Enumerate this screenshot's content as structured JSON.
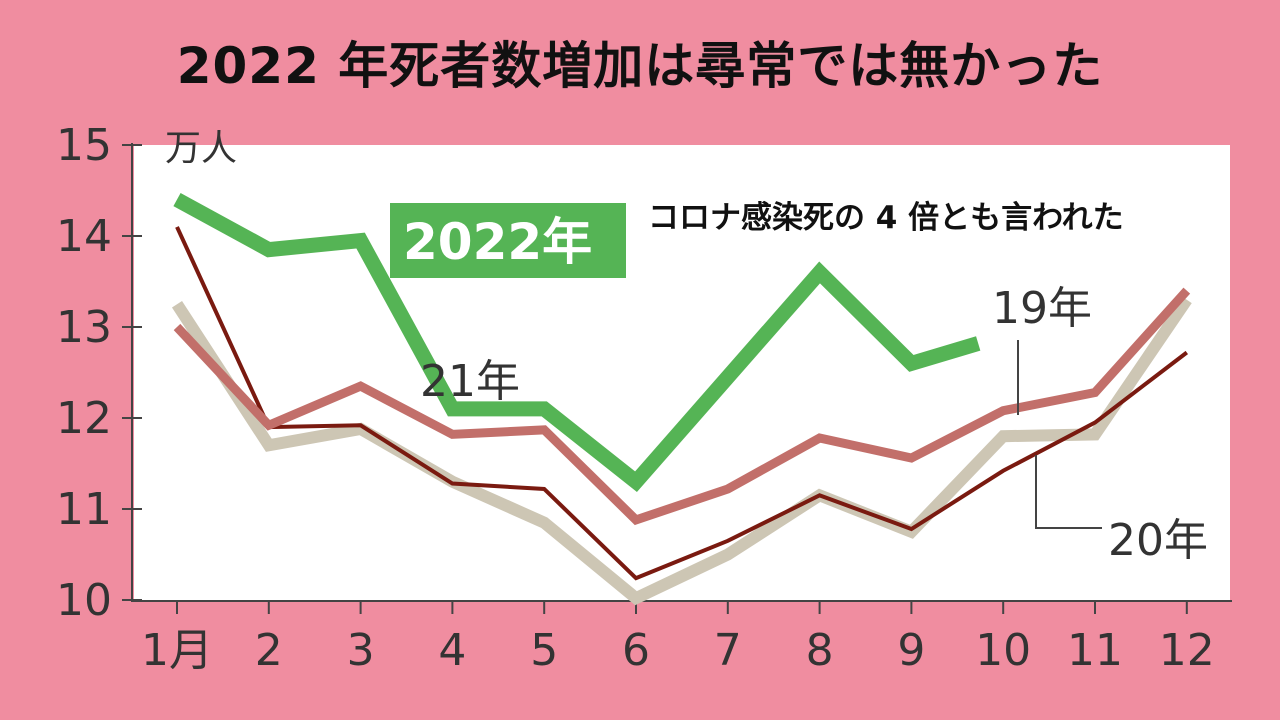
{
  "title": "2022 年死者数増加は尋常では無かった",
  "chart_data": {
    "type": "line",
    "unit": "万人",
    "categories": [
      "1月",
      "2",
      "3",
      "4",
      "5",
      "6",
      "7",
      "8",
      "9",
      "10",
      "11",
      "12"
    ],
    "yticks": [
      "10",
      "11",
      "12",
      "13",
      "14",
      "15"
    ],
    "ylim": [
      10,
      15
    ],
    "annotation": "コロナ感染死の 4 倍とも言われた",
    "series": [
      {
        "name": "19年",
        "color": "#cdc6b4",
        "values": [
          13.25,
          11.7,
          11.88,
          11.3,
          10.85,
          10.02,
          10.5,
          11.15,
          10.75,
          11.8,
          11.82,
          13.3
        ]
      },
      {
        "name": "20年",
        "color": "#7a1a10",
        "values": [
          14.1,
          11.9,
          11.92,
          11.28,
          11.22,
          10.24,
          10.65,
          11.15,
          10.78,
          11.42,
          11.95,
          12.72
        ]
      },
      {
        "name": "21年",
        "color": "#c26f6a",
        "values": [
          13.0,
          11.92,
          12.35,
          11.82,
          11.87,
          10.88,
          11.22,
          11.78,
          11.56,
          12.08,
          12.28,
          13.4
        ]
      },
      {
        "name": "2022年",
        "color": "#55b455",
        "values": [
          14.4,
          13.85,
          13.95,
          12.1,
          12.1,
          11.3,
          null,
          13.6,
          12.6,
          12.82,
          null,
          null
        ]
      }
    ],
    "grid": false
  }
}
